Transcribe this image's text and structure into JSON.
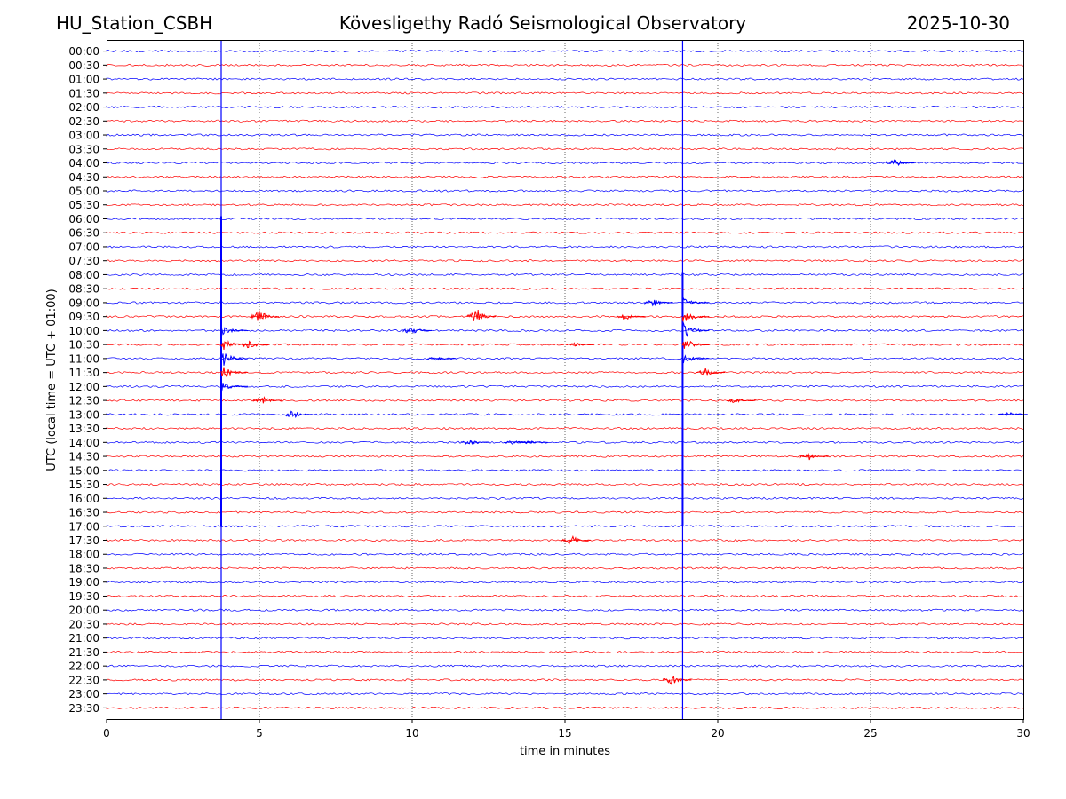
{
  "header": {
    "station": "HU_Station_CSBH",
    "observatory": "Kövesligethy Radó Seismological Observatory",
    "date": "2025-10-30"
  },
  "chart_data": {
    "type": "line",
    "title": "Kövesligethy Radó Seismological Observatory",
    "xlabel": "time in minutes",
    "ylabel": "UTC (local time = UTC + 01:00)",
    "xlim": [
      0,
      30
    ],
    "x_ticks": [
      0,
      5,
      10,
      15,
      20,
      25,
      30
    ],
    "vertical_gridlines_at": [
      5,
      10,
      15,
      20,
      25
    ],
    "trace_labels": [
      "00:00",
      "00:30",
      "01:00",
      "01:30",
      "02:00",
      "02:30",
      "03:00",
      "03:30",
      "04:00",
      "04:30",
      "05:00",
      "05:30",
      "06:00",
      "06:30",
      "07:00",
      "07:30",
      "08:00",
      "08:30",
      "09:00",
      "09:30",
      "10:00",
      "10:30",
      "11:00",
      "11:30",
      "12:00",
      "12:30",
      "13:00",
      "13:30",
      "14:00",
      "14:30",
      "15:00",
      "15:30",
      "16:00",
      "16:30",
      "17:00",
      "17:30",
      "18:00",
      "18:30",
      "19:00",
      "19:30",
      "20:00",
      "20:30",
      "21:00",
      "21:30",
      "22:00",
      "22:30",
      "23:00",
      "23:30"
    ],
    "trace_colors": [
      "#0000ff",
      "#ff0000"
    ],
    "large_events": [
      {
        "name": "event-1",
        "start_trace": "06:00",
        "minute": 3.75,
        "peak_trace": "11:00",
        "coda_end_trace": "17:00"
      },
      {
        "name": "event-2",
        "start_trace": "08:00",
        "minute": 18.85,
        "peak_trace": "10:00",
        "coda_end_trace": "17:00"
      }
    ],
    "local_events": [
      {
        "trace": "04:00",
        "minute": 25.8,
        "amp": 5
      },
      {
        "trace": "09:00",
        "minute": 17.9,
        "amp": 5
      },
      {
        "trace": "09:30",
        "minute": 5.0,
        "amp": 9
      },
      {
        "trace": "09:30",
        "minute": 12.1,
        "amp": 11
      },
      {
        "trace": "09:30",
        "minute": 17.0,
        "amp": 4
      },
      {
        "trace": "10:00",
        "minute": 10.0,
        "amp": 7
      },
      {
        "trace": "10:30",
        "minute": 4.7,
        "amp": 7
      },
      {
        "trace": "10:30",
        "minute": 15.3,
        "amp": 3
      },
      {
        "trace": "11:00",
        "minute": 10.8,
        "amp": 3
      },
      {
        "trace": "11:30",
        "minute": 19.6,
        "amp": 5
      },
      {
        "trace": "12:30",
        "minute": 5.1,
        "amp": 5
      },
      {
        "trace": "12:30",
        "minute": 20.6,
        "amp": 4
      },
      {
        "trace": "13:00",
        "minute": 6.1,
        "amp": 6
      },
      {
        "trace": "13:00",
        "minute": 29.5,
        "amp": 3
      },
      {
        "trace": "14:00",
        "minute": 11.9,
        "amp": 4
      },
      {
        "trace": "14:00",
        "minute": 13.3,
        "amp": 3
      },
      {
        "trace": "14:00",
        "minute": 13.8,
        "amp": 3
      },
      {
        "trace": "14:30",
        "minute": 23.0,
        "amp": 5
      },
      {
        "trace": "17:30",
        "minute": 15.2,
        "amp": 7
      },
      {
        "trace": "22:30",
        "minute": 18.5,
        "amp": 6
      }
    ]
  }
}
